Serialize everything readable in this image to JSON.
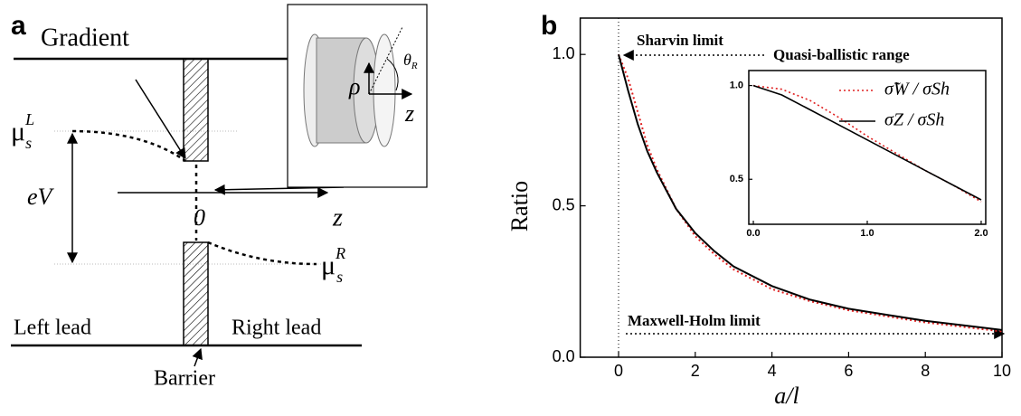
{
  "diagram": {
    "panel_label": "a",
    "gradient": "Gradient",
    "mu_left": {
      "base": "μ",
      "sub": "s",
      "sup": "L"
    },
    "mu_right": {
      "base": "μ",
      "sub": "s",
      "sup": "R"
    },
    "ev": "eV",
    "origin": "0",
    "z_axis": "z",
    "left_lead": "Left lead",
    "right_lead": "Right lead",
    "barrier": "Barrier",
    "inset": {
      "rho": "ρ",
      "theta": {
        "base": "θ",
        "sub": "R"
      },
      "z": "z"
    }
  },
  "chart_data": [
    {
      "type": "line",
      "panel_label": "b",
      "xlabel": "a/l",
      "ylabel": "Ratio",
      "annotations": {
        "sharvin": "Sharvin limit",
        "quasi": "Quasi-ballistic range",
        "maxwell": "Maxwell-Holm limit"
      },
      "x": [
        0,
        0.25,
        0.5,
        0.75,
        1,
        1.5,
        2,
        2.5,
        3,
        4,
        5,
        6,
        7,
        8,
        9,
        10
      ],
      "series": [
        {
          "color": "#e02020",
          "style": "dotted",
          "values": [
            1.0,
            0.92,
            0.81,
            0.7,
            0.62,
            0.49,
            0.4,
            0.34,
            0.29,
            0.225,
            0.185,
            0.155,
            0.135,
            0.115,
            0.1,
            0.085
          ]
        },
        {
          "color": "#000000",
          "style": "solid",
          "values": [
            1.0,
            0.88,
            0.77,
            0.68,
            0.61,
            0.49,
            0.41,
            0.35,
            0.3,
            0.235,
            0.19,
            0.16,
            0.14,
            0.12,
            0.105,
            0.09
          ]
        }
      ],
      "xlim": [
        -1,
        10
      ],
      "ylim": [
        0,
        1.12
      ],
      "xticks": [
        0,
        2,
        4,
        6,
        8,
        10
      ],
      "yticks": [
        {
          "value": 0,
          "label": "0.0"
        },
        0.5,
        {
          "value": 1,
          "label": "1.0"
        }
      ]
    },
    {
      "type": "line",
      "x": [
        0,
        0.25,
        0.5,
        0.75,
        1,
        1.25,
        1.5,
        1.75,
        2
      ],
      "series": [
        {
          "name": "σ̃W / σSh",
          "color": "#e02020",
          "style": "dotted",
          "values": [
            1.0,
            0.98,
            0.92,
            0.83,
            0.73,
            0.64,
            0.55,
            0.47,
            0.38
          ]
        },
        {
          "name": "σZ / σSh",
          "color": "#000000",
          "style": "solid",
          "values": [
            1.0,
            0.95,
            0.87,
            0.79,
            0.71,
            0.63,
            0.55,
            0.47,
            0.39
          ]
        }
      ],
      "xlim": [
        -0.04,
        2.04
      ],
      "ylim": [
        0.26,
        1.08
      ],
      "xticks": [
        {
          "value": 0,
          "label": "0.0"
        },
        {
          "value": 1,
          "label": "1.0"
        },
        {
          "value": 2,
          "label": "2.0"
        }
      ],
      "yticks": [
        0.5,
        {
          "value": 1,
          "label": "1.0"
        }
      ]
    }
  ]
}
